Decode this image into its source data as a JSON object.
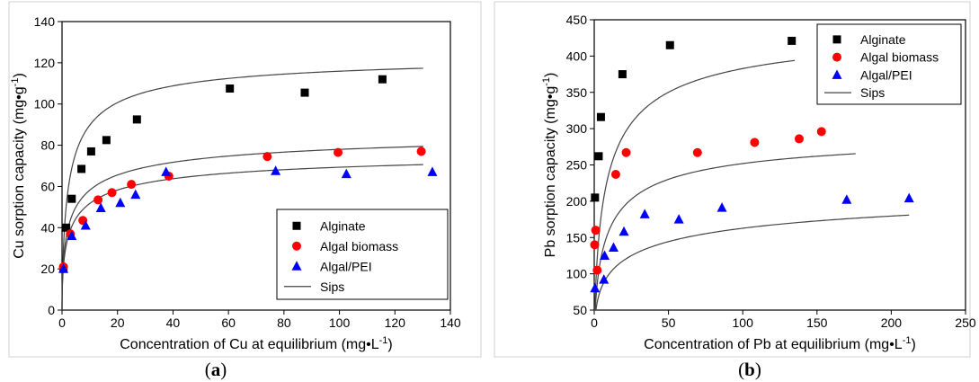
{
  "chart_data": [
    {
      "type": "scatter",
      "panel_label": {
        "open": "(",
        "letter": "a",
        "close": ")"
      },
      "ylabel": {
        "main": "Cu sorption capacity (mg•g",
        "sup": "-1",
        "tail": ")"
      },
      "xlabel": {
        "main": "Concentration of Cu at equilibrium (mg•L",
        "sup": "-1",
        "tail": ")"
      },
      "xlim": [
        0,
        140
      ],
      "ylim": [
        0,
        140
      ],
      "xticks": [
        0,
        20,
        40,
        60,
        80,
        100,
        120,
        140
      ],
      "yticks": [
        0,
        20,
        40,
        60,
        80,
        100,
        120,
        140
      ],
      "grid": false,
      "legend_position": "lower-right",
      "series": [
        {
          "name": "Alginate",
          "marker": "square",
          "color": "#000000",
          "points": [
            [
              0.5,
              20
            ],
            [
              1.5,
              40
            ],
            [
              3.5,
              54
            ],
            [
              7,
              68.5
            ],
            [
              10.5,
              77
            ],
            [
              16,
              82.5
            ],
            [
              27,
              92.5
            ],
            [
              60.5,
              107.5
            ],
            [
              87.5,
              105.5
            ],
            [
              115.5,
              112
            ]
          ]
        },
        {
          "name": "Algal biomass",
          "marker": "circle",
          "color": "#ff0000",
          "points": [
            [
              0.5,
              21
            ],
            [
              3,
              37
            ],
            [
              7.5,
              43.5
            ],
            [
              13,
              53.5
            ],
            [
              18,
              57
            ],
            [
              25,
              61
            ],
            [
              38.5,
              65
            ],
            [
              74,
              74.5
            ],
            [
              99.5,
              76.5
            ],
            [
              129.5,
              77
            ]
          ]
        },
        {
          "name": "Algal/PEI",
          "marker": "triangle",
          "color": "#0000ff",
          "points": [
            [
              0.5,
              20
            ],
            [
              3.5,
              36
            ],
            [
              8.5,
              41
            ],
            [
              14,
              49.5
            ],
            [
              21,
              52
            ],
            [
              26.5,
              56
            ],
            [
              37.5,
              67
            ],
            [
              77,
              67.5
            ],
            [
              102.5,
              66
            ],
            [
              133.5,
              67
            ]
          ]
        }
      ],
      "fit": {
        "name": "Sips",
        "color": "#444444",
        "curves": [
          {
            "for": "Alginate",
            "qmax": 125,
            "K": 0.38,
            "n": 0.7
          },
          {
            "for": "Algal biomass",
            "qmax": 90,
            "K": 0.3,
            "n": 0.55
          },
          {
            "for": "Algal/PEI",
            "qmax": 80,
            "K": 0.3,
            "n": 0.55
          }
        ]
      },
      "legend": [
        "Alginate",
        "Algal biomass",
        "Algal/PEI",
        "Sips"
      ]
    },
    {
      "type": "scatter",
      "panel_label": {
        "open": "(",
        "letter": "b",
        "close": ")"
      },
      "ylabel": {
        "main": "Pb sorption capacity (mg•g",
        "sup": "-1",
        "tail": ")"
      },
      "xlabel": {
        "main": "Concentration of Pb at equilibrium (mg•L",
        "sup": "-1",
        "tail": ")"
      },
      "xlim": [
        0,
        250
      ],
      "ylim": [
        50,
        450
      ],
      "xticks": [
        0,
        50,
        100,
        150,
        200,
        250
      ],
      "yticks": [
        50,
        100,
        150,
        200,
        250,
        300,
        350,
        400,
        450
      ],
      "grid": false,
      "legend_position": "top-right",
      "series": [
        {
          "name": "Alginate",
          "marker": "square",
          "color": "#000000",
          "points": [
            [
              0.5,
              205
            ],
            [
              3,
              262
            ],
            [
              4.5,
              316
            ],
            [
              19,
              375
            ],
            [
              51,
              415
            ],
            [
              133,
              421
            ]
          ]
        },
        {
          "name": "Algal biomass",
          "marker": "circle",
          "color": "#ff0000",
          "points": [
            [
              0.3,
              140
            ],
            [
              1,
              160
            ],
            [
              2,
              105
            ],
            [
              14.5,
              237
            ],
            [
              21.5,
              267
            ],
            [
              69.5,
              267
            ],
            [
              108,
              281
            ],
            [
              138,
              286
            ],
            [
              153,
              296
            ]
          ]
        },
        {
          "name": "Algal/PEI",
          "marker": "triangle",
          "color": "#0000ff",
          "points": [
            [
              0.5,
              80
            ],
            [
              6.5,
              92
            ],
            [
              7,
              125
            ],
            [
              13,
              136
            ],
            [
              20,
              158
            ],
            [
              34,
              182
            ],
            [
              57,
              175
            ],
            [
              86,
              191
            ],
            [
              170,
              202
            ],
            [
              212,
              204
            ]
          ]
        }
      ],
      "fit": {
        "name": "Sips",
        "color": "#444444",
        "curves": [
          {
            "for": "Alginate",
            "qmax": 450,
            "K": 0.12,
            "n": 0.7,
            "xmax": 135
          },
          {
            "for": "Algal biomass",
            "qmax": 302,
            "K": 0.12,
            "n": 0.65,
            "xmax": 176
          },
          {
            "for": "Algal/PEI",
            "qmax": 250,
            "K": 0.04,
            "n": 0.45,
            "xmax": 212
          }
        ]
      },
      "legend": [
        "Alginate",
        "Algal biomass",
        "Algal/PEI",
        "Sips"
      ]
    }
  ]
}
